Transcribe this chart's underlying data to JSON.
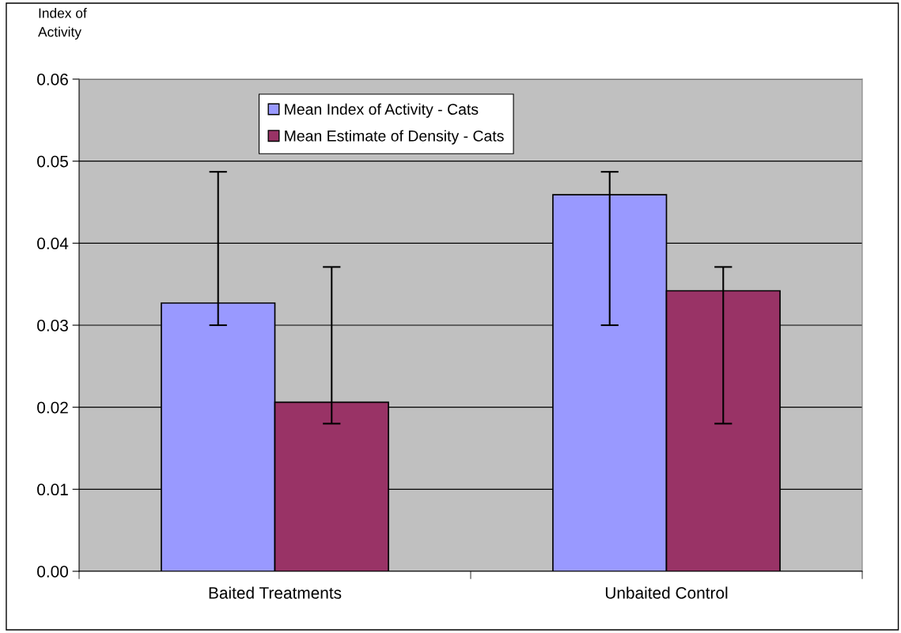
{
  "chart_data": {
    "type": "bar",
    "ylabel": "Index of\nActivity",
    "categories": [
      "Baited Treatments",
      "Unbaited Control"
    ],
    "series": [
      {
        "name": "Mean Index of Activity - Cats",
        "color": "#9999ff",
        "values": [
          0.0327,
          0.0459
        ],
        "errors": [
          [
            0.03,
            0.0487
          ],
          [
            0.03,
            0.0487
          ]
        ]
      },
      {
        "name": "Mean Estimate of Density - Cats",
        "color": "#993366",
        "values": [
          0.0206,
          0.0342
        ],
        "errors": [
          [
            0.018,
            0.0371
          ],
          [
            0.018,
            0.0371
          ]
        ]
      }
    ],
    "ylim": [
      0,
      0.06
    ],
    "yticks": [
      {
        "value": 0,
        "label": "0.00"
      },
      0.01,
      0.02,
      0.03,
      0.04,
      0.05,
      0.06
    ],
    "grid": "y",
    "legend": "top"
  }
}
